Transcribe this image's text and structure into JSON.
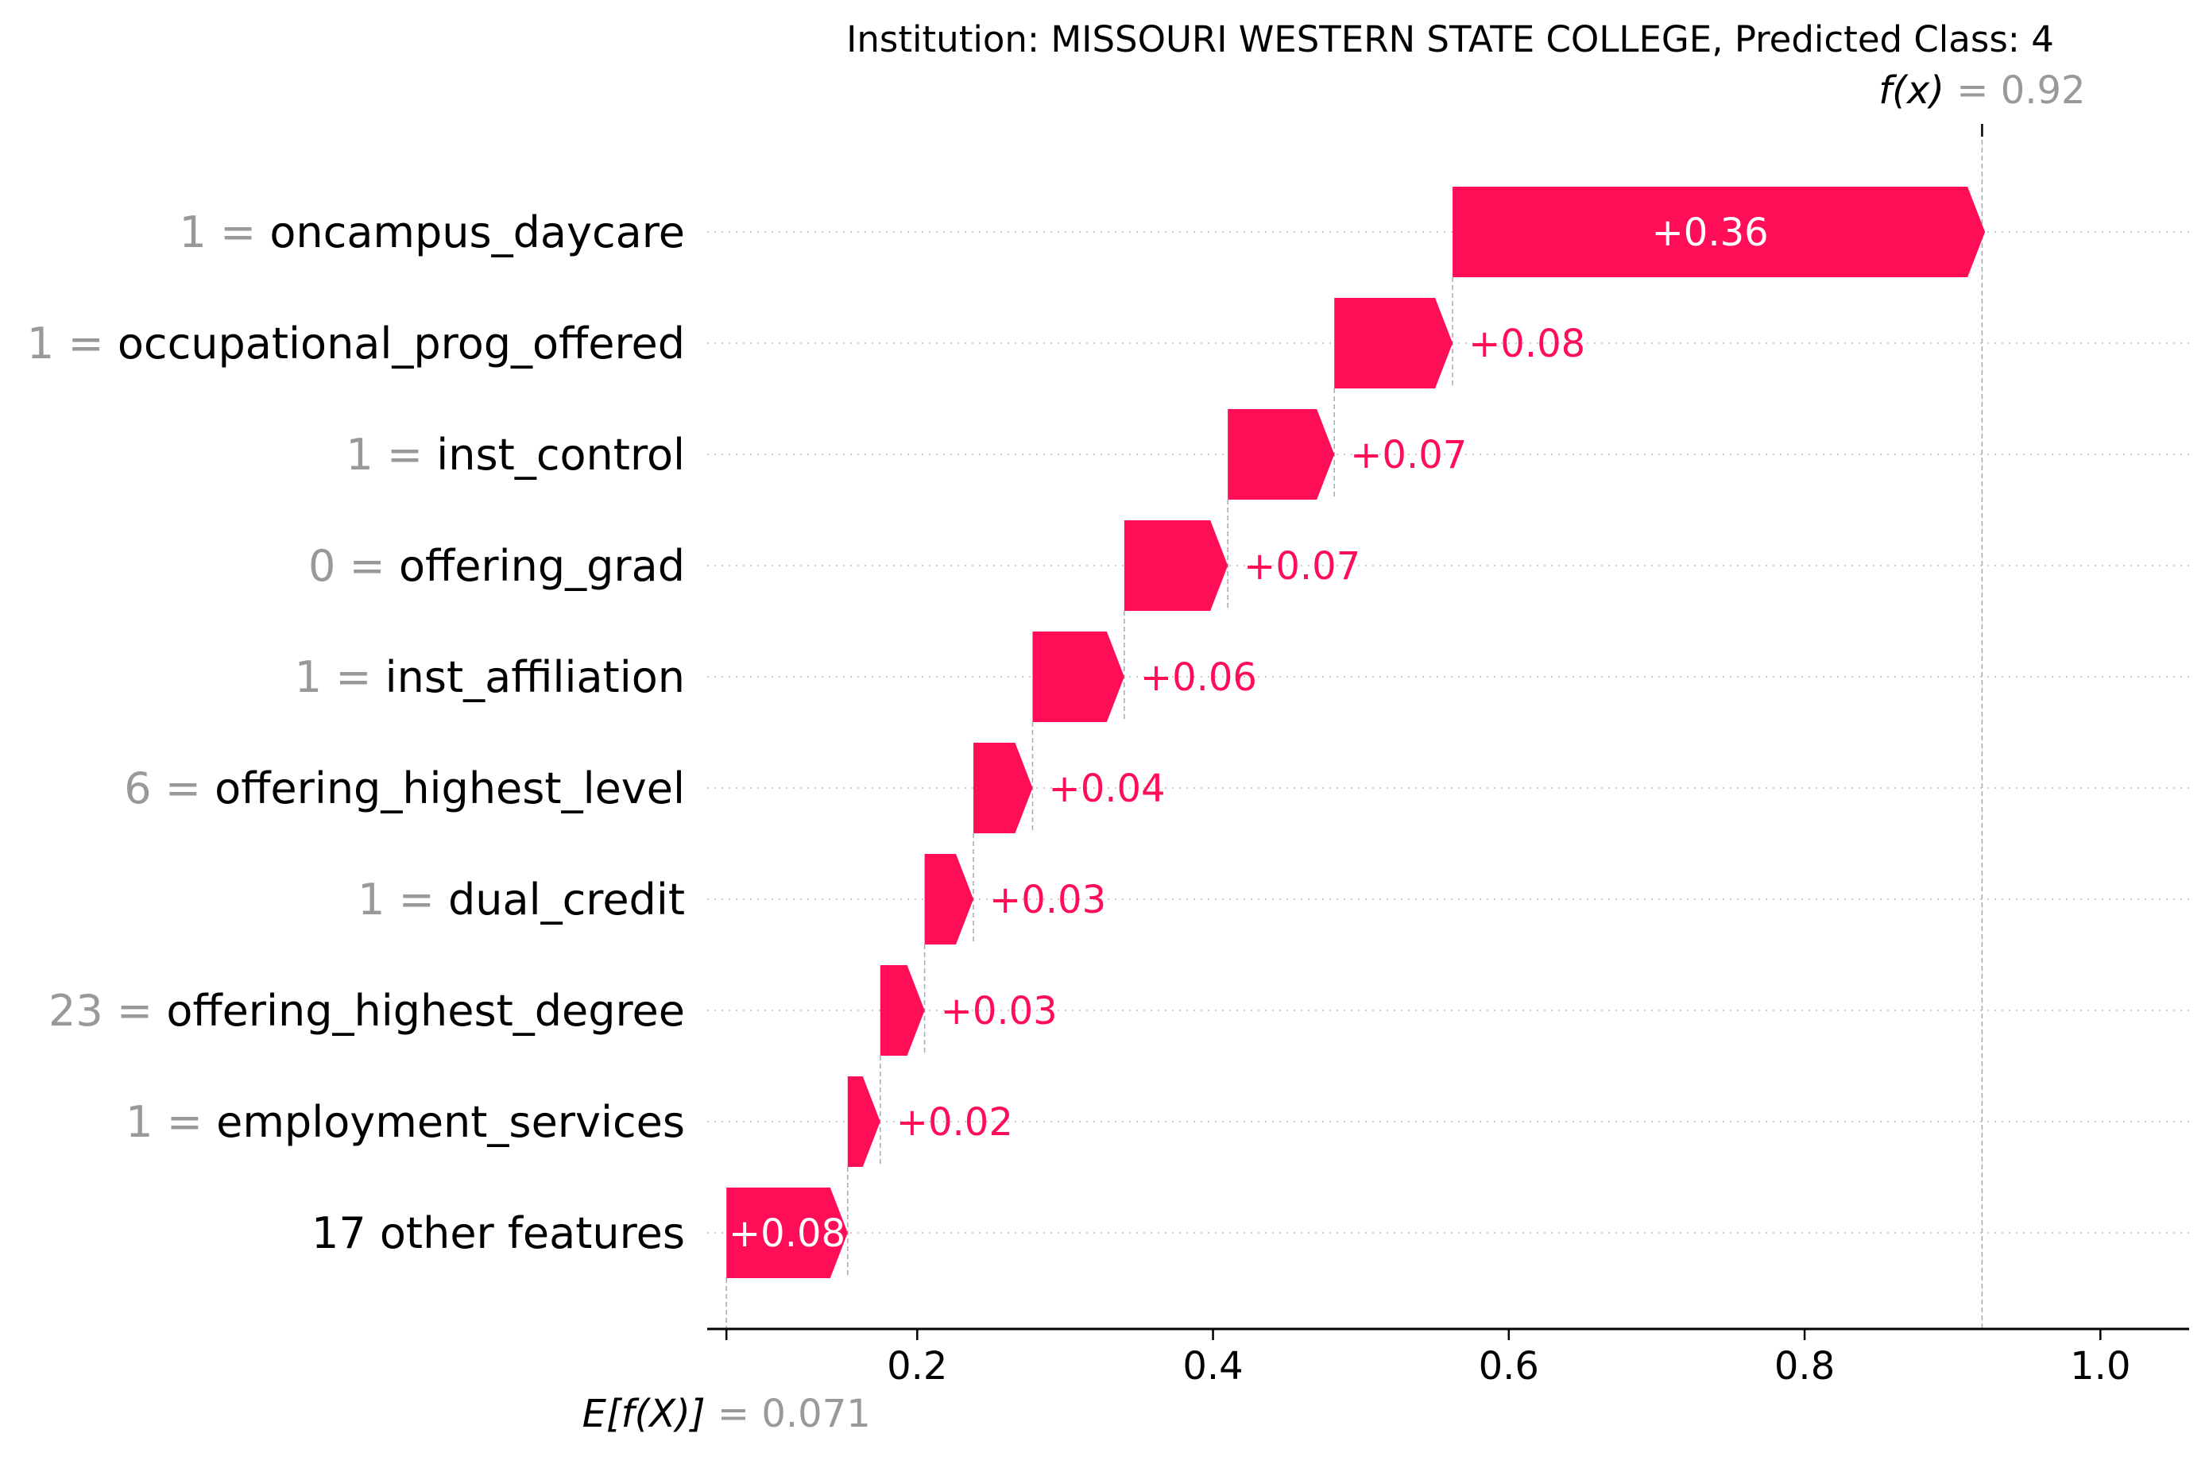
{
  "chart_data": {
    "type": "waterfall",
    "title": "Institution: MISSOURI WESTERN STATE COLLEGE, Predicted Class: 4",
    "base_value": 0.071,
    "base_label": "E[f(X)]",
    "base_value_text": "= 0.071",
    "output_value": 0.92,
    "output_label": "f(x)",
    "output_value_text": "= 0.92",
    "xlim": [
      0.058,
      1.06
    ],
    "xticks": [
      0.2,
      0.4,
      0.6,
      0.8,
      1.0
    ],
    "xtick_labels": [
      "0.2",
      "0.4",
      "0.6",
      "0.8",
      "1.0"
    ],
    "features": [
      {
        "value": "1",
        "name": "oncampus_daycare",
        "contribution": 0.36,
        "label": "+0.36"
      },
      {
        "value": "1",
        "name": "occupational_prog_offered",
        "contribution": 0.08,
        "label": "+0.08"
      },
      {
        "value": "1",
        "name": "inst_control",
        "contribution": 0.072,
        "label": "+0.07"
      },
      {
        "value": "0",
        "name": "offering_grad",
        "contribution": 0.07,
        "label": "+0.07"
      },
      {
        "value": "1",
        "name": "inst_affiliation",
        "contribution": 0.062,
        "label": "+0.06"
      },
      {
        "value": "6",
        "name": "offering_highest_level",
        "contribution": 0.04,
        "label": "+0.04"
      },
      {
        "value": "1",
        "name": "dual_credit",
        "contribution": 0.033,
        "label": "+0.03"
      },
      {
        "value": "23",
        "name": "offering_highest_degree",
        "contribution": 0.03,
        "label": "+0.03"
      },
      {
        "value": "1",
        "name": "employment_services",
        "contribution": 0.022,
        "label": "+0.02"
      },
      {
        "value": "",
        "name": "17 other features",
        "contribution": 0.082,
        "label": "+0.08"
      }
    ],
    "colors": {
      "positive": "#ff0d57",
      "label_gray": "#999999",
      "grid": "#cccccc",
      "axis": "#000000"
    }
  }
}
